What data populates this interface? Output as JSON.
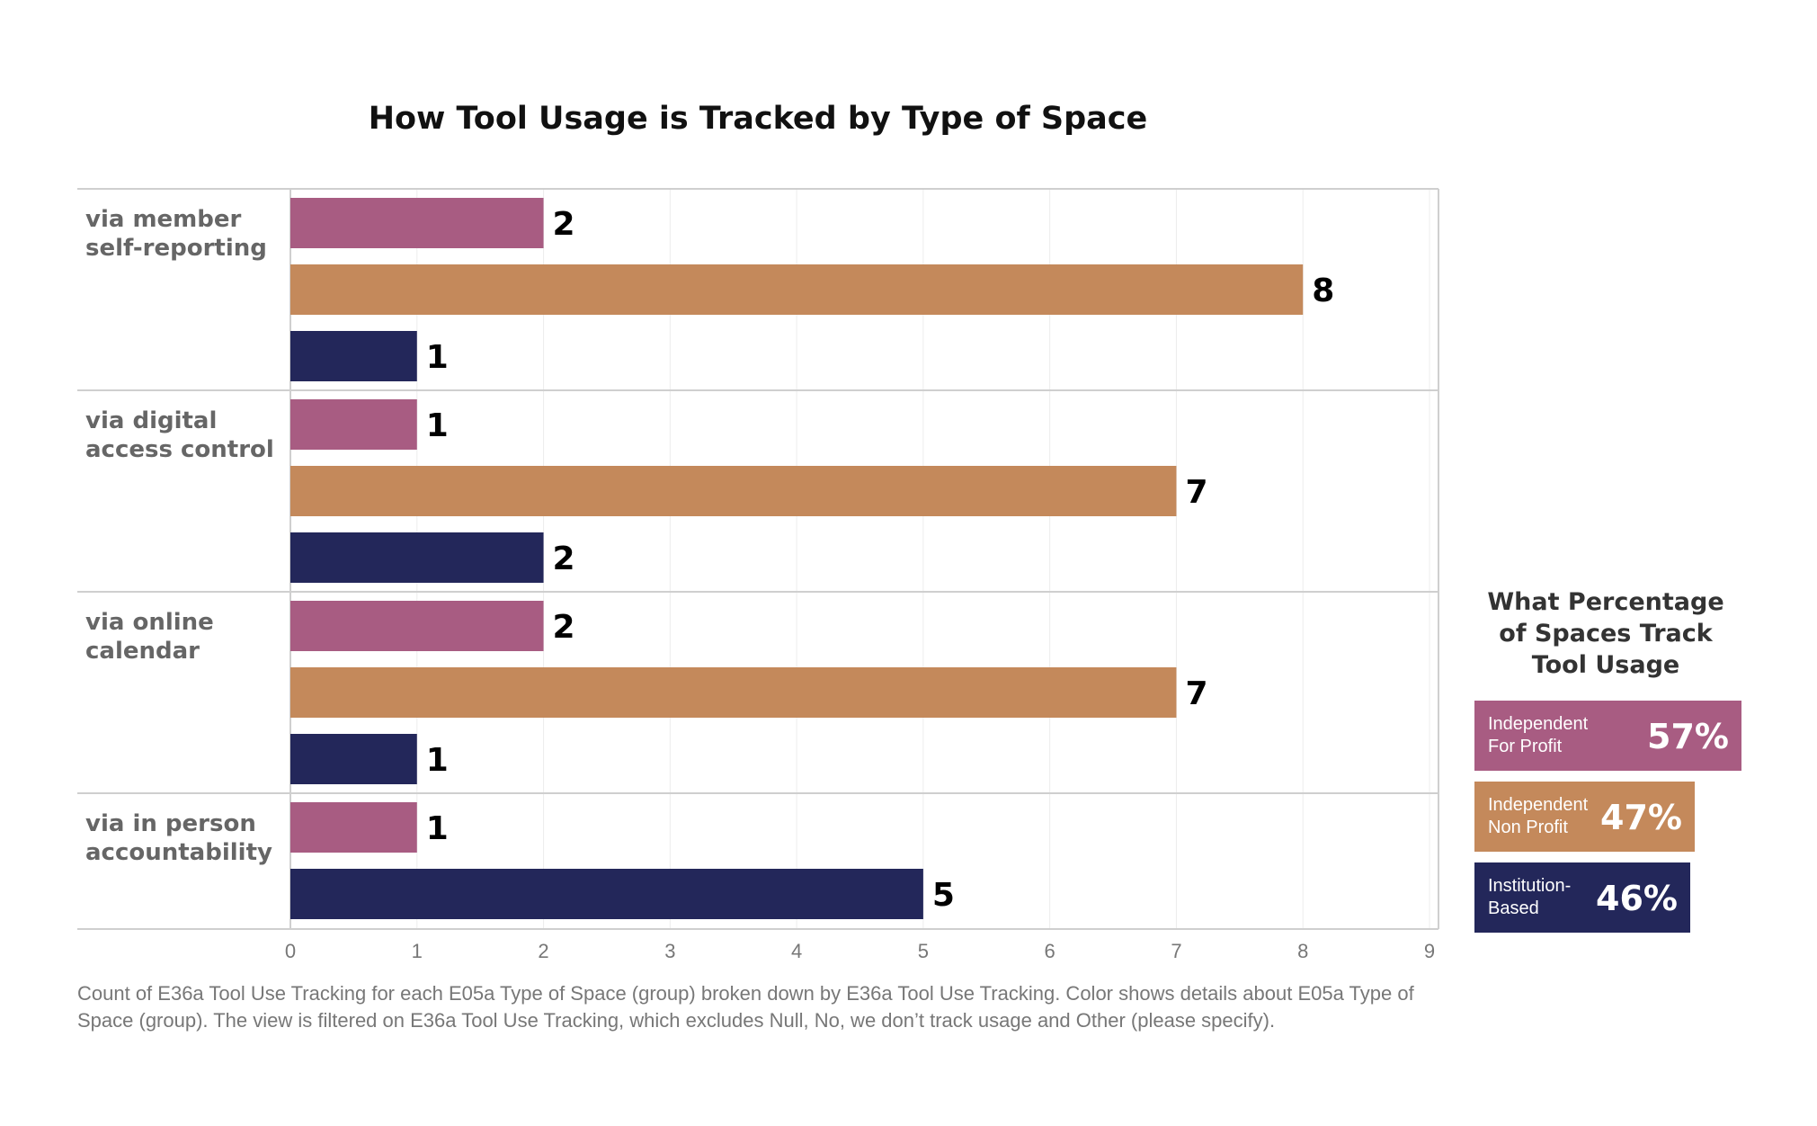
{
  "chart_data": {
    "type": "bar",
    "orientation": "horizontal",
    "title": "How Tool Usage is Tracked by Type of Space",
    "categories": [
      "via member self-reporting",
      "via digital access control",
      "via online calendar",
      "via in person accountability"
    ],
    "series": [
      {
        "key": "for_profit",
        "color": "#a85c82",
        "values": [
          2,
          1,
          2,
          1
        ]
      },
      {
        "key": "non_profit",
        "color": "#c4895b",
        "values": [
          8,
          7,
          7,
          null
        ]
      },
      {
        "key": "institution",
        "color": "#23275a",
        "values": [
          1,
          2,
          1,
          5
        ]
      }
    ],
    "xlim": [
      0,
      9
    ],
    "xticks": [
      "0",
      "1",
      "2",
      "3",
      "4",
      "5",
      "6",
      "7",
      "8",
      "9"
    ],
    "grid": true
  },
  "caption": "Count of E36a Tool Use Tracking for each E05a Type of Space (group) broken down by E36a Tool Use Tracking.  Color shows details about E05a Type of Space (group). The view is filtered on E36a Tool Use Tracking, which excludes Null, No, we don’t track usage and Other (please specify).",
  "percent_panel": {
    "title": "What Percentage of Spaces Track Tool Usage",
    "items": [
      {
        "name": "Independent For Profit",
        "value": 57,
        "label": "57%",
        "color": "#a85c82"
      },
      {
        "name": "Independent Non Profit",
        "value": 47,
        "label": "47%",
        "color": "#c4895b"
      },
      {
        "name": "Institution-Based",
        "value": 46,
        "label": "46%",
        "color": "#23275a"
      }
    ]
  }
}
